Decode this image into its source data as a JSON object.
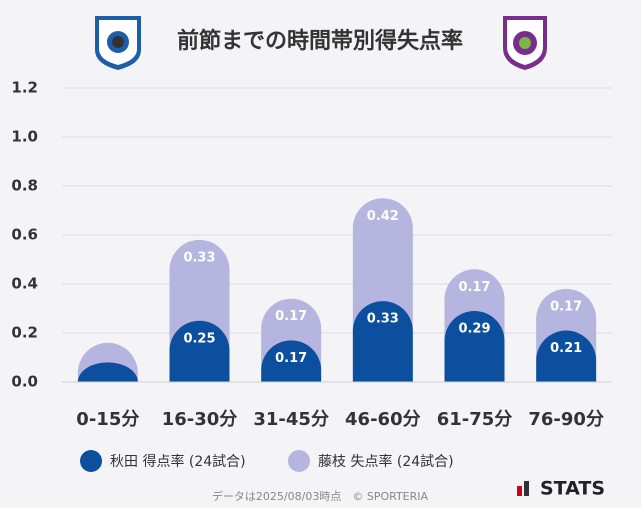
{
  "chart_data": {
    "type": "stacked_bar",
    "title": "前節までの時間帯別得失点率",
    "categories": [
      "0-15分",
      "16-30分",
      "31-45分",
      "46-60分",
      "61-75分",
      "76-90分"
    ],
    "series": [
      {
        "name": "秋田 得点率 (24試合)",
        "color": "#0b4f9e",
        "values": [
          0.08,
          0.25,
          0.17,
          0.33,
          0.29,
          0.21
        ],
        "value_labels": [
          null,
          "0.25",
          "0.17",
          "0.33",
          "0.29",
          "0.21"
        ]
      },
      {
        "name": "藤枝 失点率 (24試合)",
        "color": "#b5b5e0",
        "values": [
          0.08,
          0.33,
          0.17,
          0.42,
          0.17,
          0.17
        ],
        "value_labels": [
          null,
          "0.33",
          "0.17",
          "0.42",
          "0.17",
          "0.17"
        ]
      }
    ],
    "ylim": [
      0,
      1.2
    ],
    "yticks": [
      {
        "value": 0,
        "label": "0.0"
      },
      0.2,
      0.4,
      0.6,
      0.8,
      {
        "value": 1,
        "label": "1.0"
      },
      1.2
    ],
    "grid": true,
    "legend": "bottom",
    "footer": "データは2025/08/03時点　© SPORTERIA",
    "branding": "STATS"
  }
}
